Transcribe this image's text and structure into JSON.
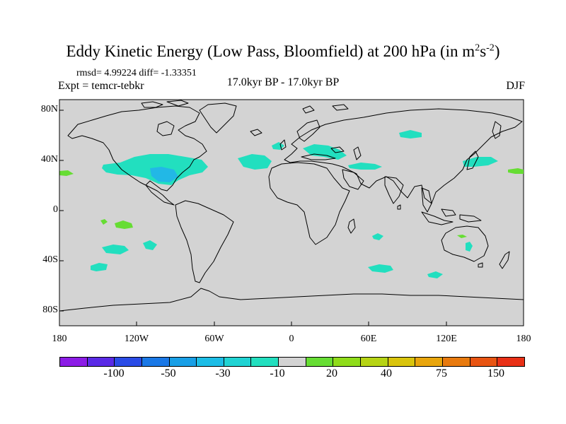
{
  "title": {
    "main": "Eddy Kinetic Energy (Low Pass, Bloomfield) at 200 hPa (in m",
    "sup1": "2",
    "mid": "s",
    "sup2": "-2",
    "end": ")"
  },
  "stats": "rmsd= 4.99224 diff= -1.33351",
  "expt": "Expt = temcr-tebkr",
  "period": "17.0kyr BP - 17.0kyr BP",
  "season": "DJF",
  "lat_labels": [
    "80N",
    "40N",
    "0",
    "40S",
    "80S"
  ],
  "lon_labels": [
    "180",
    "120W",
    "60W",
    "0",
    "60E",
    "120E",
    "180"
  ],
  "colors": {
    "land_ocean": "#d3d3d3",
    "coast": "#000000",
    "cyan": "#22dfbf",
    "lightblue": "#22b8e6",
    "green": "#66dd33"
  },
  "colorbar": {
    "colors": [
      "#8c1ce6",
      "#5a2ae6",
      "#2a4be6",
      "#1a78e6",
      "#189fe6",
      "#1cbde6",
      "#20d3d3",
      "#22dfbf",
      "#d3d3d3",
      "#66dd33",
      "#8fdc1a",
      "#b6d414",
      "#d9c40c",
      "#e8a50c",
      "#e87a0e",
      "#e85412",
      "#e83016"
    ],
    "labels": [
      "-100",
      "-50",
      "-30",
      "-10",
      "20",
      "40",
      "75",
      "150"
    ]
  }
}
